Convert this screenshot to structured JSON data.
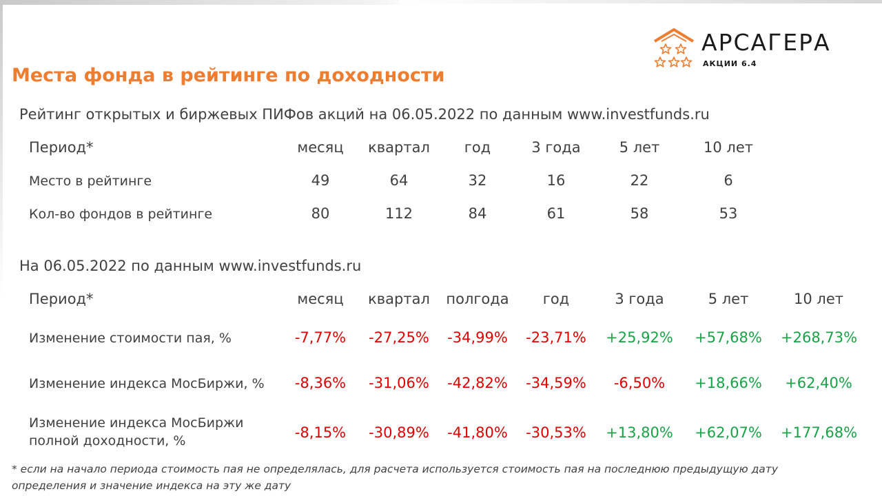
{
  "logo": {
    "name": "АРСАГЕРА",
    "sub": "АКЦИИ 6.4",
    "color": "#ed7d31"
  },
  "title": "Места фонда в рейтинге по доходности",
  "rating": {
    "subtitle": "Рейтинг открытых и биржевых ПИФов акций на 06.05.2022 по данным www.investfunds.ru",
    "period_label": "Период*",
    "columns": [
      "месяц",
      "квартал",
      "год",
      "3 года",
      "5 лет",
      "10 лет"
    ],
    "rows": [
      {
        "label": "Место в рейтинге",
        "values": [
          "49",
          "64",
          "32",
          "16",
          "22",
          "6"
        ]
      },
      {
        "label": "Кол-во фондов в рейтинге",
        "values": [
          "80",
          "112",
          "84",
          "61",
          "58",
          "53"
        ]
      }
    ]
  },
  "changes": {
    "subtitle": "На 06.05.2022 по данным www.investfunds.ru",
    "period_label": "Период*",
    "columns": [
      "месяц",
      "квартал",
      "полгода",
      "год",
      "3 года",
      "5 лет",
      "10 лет"
    ],
    "rows": [
      {
        "label": "Изменение стоимости пая, %",
        "values": [
          "-7,77%",
          "-27,25%",
          "-34,99%",
          "-23,71%",
          "+25,92%",
          "+57,68%",
          "+268,73%"
        ]
      },
      {
        "label": "Изменение индекса МосБиржи, %",
        "values": [
          "-8,36%",
          "-31,06%",
          "-42,82%",
          "-34,59%",
          "-6,50%",
          "+18,66%",
          "+62,40%"
        ]
      },
      {
        "label_line1": "Изменение индекса МосБиржи",
        "label_line2": "полной доходности, %",
        "values": [
          "-8,15%",
          "-30,89%",
          "-41,80%",
          "-30,53%",
          "+13,80%",
          "+62,07%",
          "+177,68%"
        ]
      }
    ],
    "colors": {
      "negative": "#e00000",
      "positive": "#17a346"
    }
  },
  "footnote": {
    "line1": "* если на начало периода стоимость пая не определялась, для расчета используется стоимость пая на последнюю предыдущую дату",
    "line2": "определения и значение индекса на эту же дату"
  }
}
